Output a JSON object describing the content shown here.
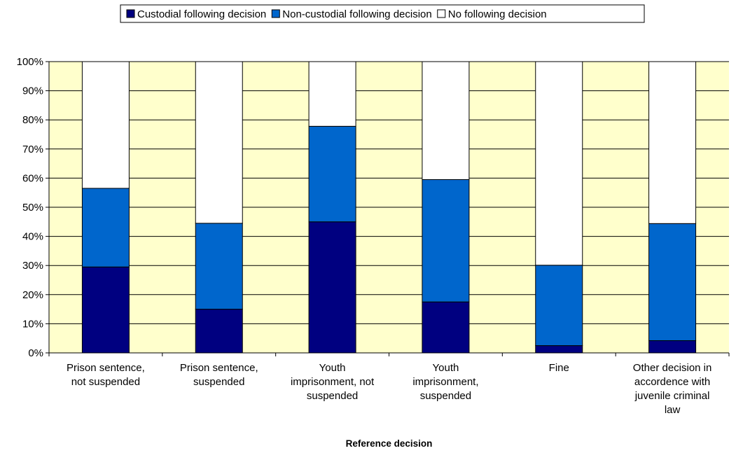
{
  "chart_data": {
    "type": "bar",
    "stacked": true,
    "percent": true,
    "title": "",
    "xlabel": "Reference decision",
    "ylabel": "",
    "ylim": [
      0,
      100
    ],
    "yticks": [
      "0%",
      "10%",
      "20%",
      "30%",
      "40%",
      "50%",
      "60%",
      "70%",
      "80%",
      "90%",
      "100%"
    ],
    "legend_position": "top",
    "plot_background": "#FFFFCC",
    "categories": [
      [
        "Prison sentence,",
        "not suspended"
      ],
      [
        "Prison sentence,",
        "suspended"
      ],
      [
        "Youth",
        "imprisonment, not",
        "suspended"
      ],
      [
        "Youth",
        "imprisonment,",
        "suspended"
      ],
      [
        "Fine"
      ],
      [
        "Other decision in",
        "accordence with",
        "juvenile criminal",
        "law"
      ]
    ],
    "series": [
      {
        "name": "Custodial following decision",
        "color": "#000080",
        "values": [
          29.5,
          15,
          45,
          17.5,
          2.5,
          4.2
        ]
      },
      {
        "name": "Non-custodial following decision",
        "color": "#0066CC",
        "values": [
          27,
          29.5,
          32.8,
          42,
          27.6,
          40.2
        ]
      },
      {
        "name": "No following decision",
        "color": "#FFFFFF",
        "values": [
          43.5,
          55.5,
          22.2,
          40.5,
          69.9,
          55.6
        ]
      }
    ]
  }
}
